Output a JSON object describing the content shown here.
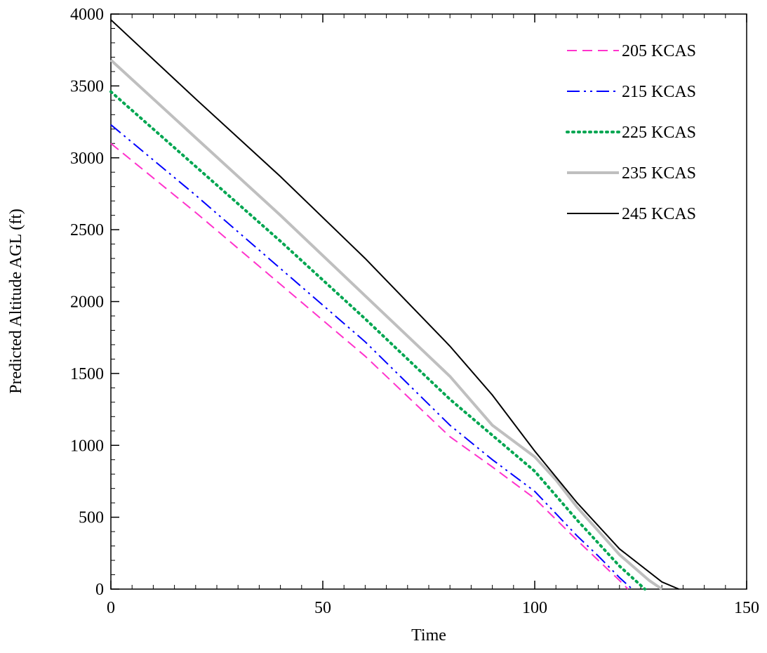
{
  "chart_data": {
    "type": "line",
    "title": "",
    "xlabel": "Time",
    "ylabel": "Predicted Altitude AGL (ft)",
    "xlim": [
      0,
      150
    ],
    "ylim": [
      0,
      4000
    ],
    "x_ticks": [
      0,
      50,
      100,
      150
    ],
    "y_ticks": [
      0,
      500,
      1000,
      1500,
      2000,
      2500,
      3000,
      3500,
      4000
    ],
    "x_tick_labels": [
      "0",
      "50",
      "100",
      "150"
    ],
    "y_tick_labels": [
      "0",
      "500",
      "1000",
      "1500",
      "2000",
      "2500",
      "3000",
      "3500",
      "4000"
    ],
    "grid": false,
    "legend_position": "top-right",
    "series": [
      {
        "name": "205 KCAS",
        "color": "#ff33cc",
        "style": "dashed",
        "points": [
          [
            0,
            3100
          ],
          [
            20,
            2620
          ],
          [
            40,
            2120
          ],
          [
            60,
            1620
          ],
          [
            80,
            1060
          ],
          [
            90,
            850
          ],
          [
            100,
            630
          ],
          [
            110,
            340
          ],
          [
            115,
            200
          ],
          [
            120,
            60
          ],
          [
            122,
            0
          ]
        ]
      },
      {
        "name": "215 KCAS",
        "color": "#0000ff",
        "style": "dash-dot-dot",
        "points": [
          [
            0,
            3230
          ],
          [
            20,
            2740
          ],
          [
            40,
            2230
          ],
          [
            60,
            1720
          ],
          [
            80,
            1140
          ],
          [
            90,
            900
          ],
          [
            100,
            680
          ],
          [
            110,
            370
          ],
          [
            115,
            230
          ],
          [
            120,
            80
          ],
          [
            123,
            0
          ]
        ]
      },
      {
        "name": "225 KCAS",
        "color": "#00a651",
        "style": "dotted",
        "points": [
          [
            0,
            3460
          ],
          [
            20,
            2940
          ],
          [
            40,
            2420
          ],
          [
            60,
            1880
          ],
          [
            80,
            1320
          ],
          [
            90,
            1070
          ],
          [
            100,
            820
          ],
          [
            110,
            480
          ],
          [
            120,
            160
          ],
          [
            126,
            0
          ]
        ]
      },
      {
        "name": "235 KCAS",
        "color": "#bfbfbf",
        "style": "solid-thick",
        "points": [
          [
            0,
            3680
          ],
          [
            20,
            3140
          ],
          [
            40,
            2600
          ],
          [
            60,
            2040
          ],
          [
            80,
            1480
          ],
          [
            90,
            1140
          ],
          [
            100,
            920
          ],
          [
            105,
            760
          ],
          [
            110,
            570
          ],
          [
            120,
            240
          ],
          [
            127,
            60
          ],
          [
            130,
            0
          ]
        ]
      },
      {
        "name": "245 KCAS",
        "color": "#000000",
        "style": "solid",
        "points": [
          [
            0,
            3960
          ],
          [
            20,
            3410
          ],
          [
            40,
            2870
          ],
          [
            60,
            2300
          ],
          [
            80,
            1690
          ],
          [
            90,
            1350
          ],
          [
            100,
            960
          ],
          [
            110,
            600
          ],
          [
            120,
            280
          ],
          [
            130,
            50
          ],
          [
            134,
            0
          ]
        ]
      }
    ]
  }
}
